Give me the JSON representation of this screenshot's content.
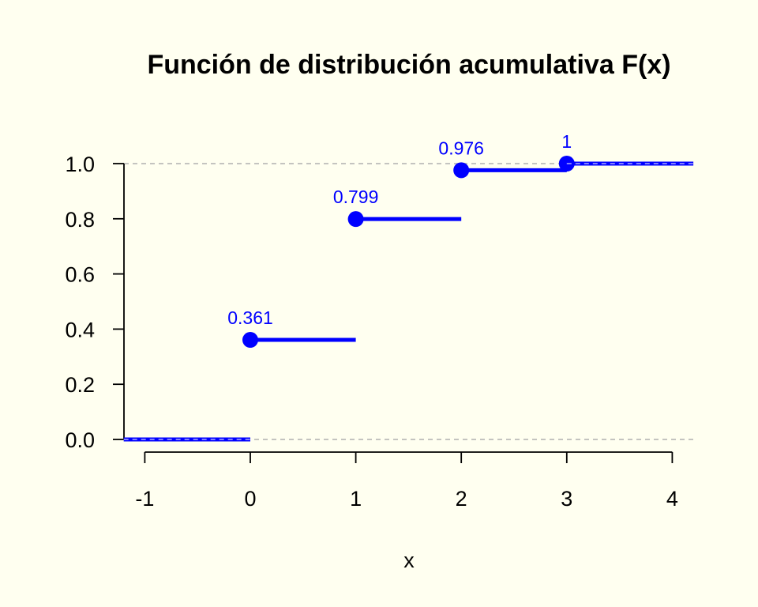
{
  "chart_data": {
    "type": "line",
    "subtype": "step-cdf",
    "title": "Función de distribución acumulativa F(x)",
    "xlabel": "x",
    "ylabel": "",
    "xlim": [
      -1.2,
      4.2
    ],
    "ylim": [
      0,
      1.0
    ],
    "x_ticks": [
      "-1",
      "0",
      "1",
      "2",
      "3",
      "4"
    ],
    "y_ticks": [
      "0.0",
      "0.2",
      "0.4",
      "0.6",
      "0.8",
      "1.0"
    ],
    "reference_lines": [
      0,
      1
    ],
    "color": "#0000ff",
    "reference_color": "#b0b0b0",
    "steps": [
      {
        "x_start": -1.2,
        "x_end": 0,
        "y": 0,
        "point": false,
        "label": ""
      },
      {
        "x_start": 0,
        "x_end": 1,
        "y": 0.361,
        "point": true,
        "label": "0.361"
      },
      {
        "x_start": 1,
        "x_end": 2,
        "y": 0.799,
        "point": true,
        "label": "0.799"
      },
      {
        "x_start": 2,
        "x_end": 3,
        "y": 0.976,
        "point": true,
        "label": "0.976"
      },
      {
        "x_start": 3,
        "x_end": 4.2,
        "y": 1.0,
        "point": true,
        "label": "1"
      }
    ]
  }
}
